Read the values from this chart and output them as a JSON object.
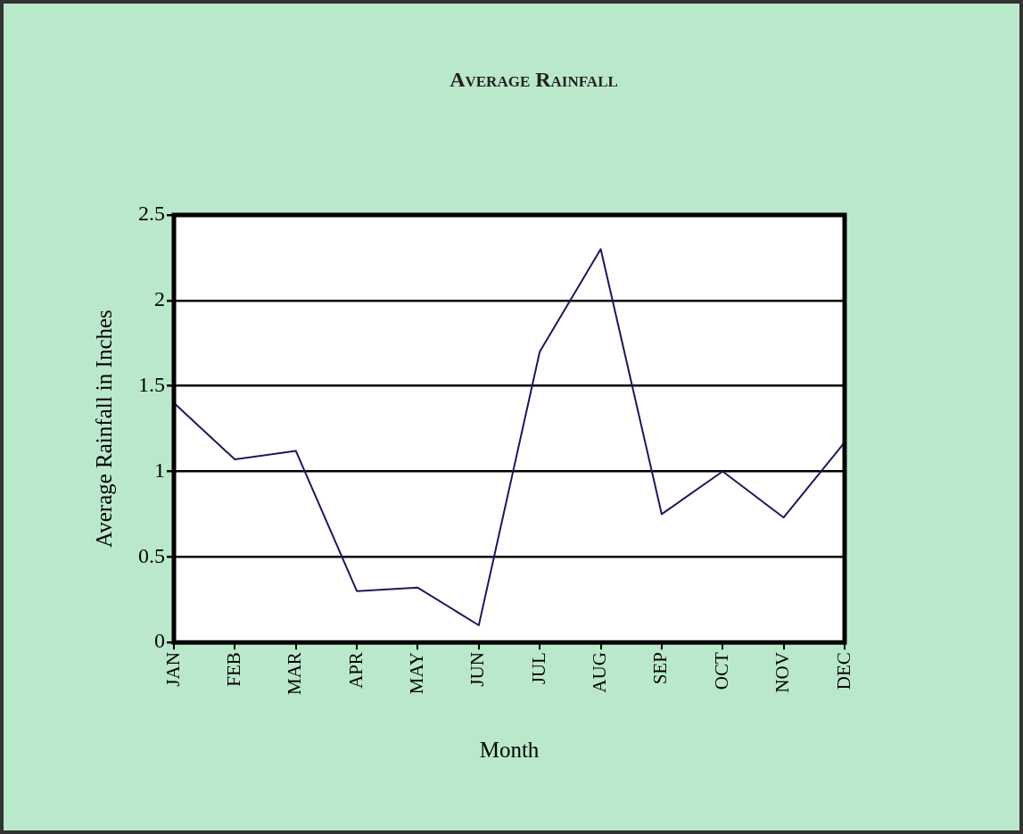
{
  "chart_data": {
    "type": "line",
    "title": "Average Rainfall",
    "xlabel": "Month",
    "ylabel": "Average Rainfall in Inches",
    "categories": [
      "JAN",
      "FEB",
      "MAR",
      "APR",
      "MAY",
      "JUN",
      "JUL",
      "AUG",
      "SEP",
      "OCT",
      "NOV",
      "DEC"
    ],
    "series": [
      {
        "color": "#1a1a5e",
        "values": [
          1.4,
          1.07,
          1.12,
          0.3,
          0.32,
          0.1,
          1.7,
          2.3,
          0.75,
          1.0,
          0.73,
          1.17
        ]
      }
    ],
    "ylim": [
      0,
      2.5
    ],
    "yticks": [
      0,
      0.5,
      1,
      1.5,
      2,
      2.5
    ],
    "grid": "y",
    "legend": false,
    "marker": "none",
    "line_style": "solid"
  }
}
